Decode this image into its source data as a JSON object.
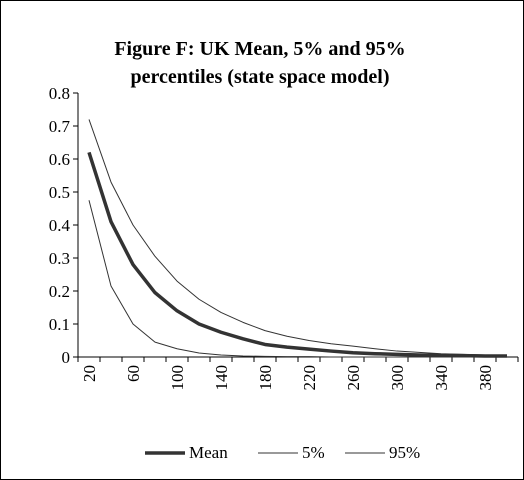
{
  "chart_data": {
    "type": "line",
    "title": [
      "Figure F: UK Mean, 5%  and 95%",
      "percentiles (state space model)"
    ],
    "categories": [
      "20",
      null,
      "60",
      null,
      "100",
      null,
      "140",
      null,
      "180",
      null,
      "220",
      null,
      "260",
      null,
      "300",
      null,
      "340",
      null,
      "380",
      null
    ],
    "series": [
      {
        "name": "Mean",
        "color": "#333333",
        "width": 3.5,
        "values": [
          0.62,
          0.41,
          0.28,
          0.195,
          0.14,
          0.1,
          0.075,
          0.055,
          0.038,
          0.03,
          0.024,
          0.018,
          0.013,
          0.01,
          0.008,
          0.006,
          0.005,
          0.004,
          0.003,
          0.003
        ]
      },
      {
        "name": "5%",
        "color": "#333333",
        "width": 1,
        "values": [
          0.475,
          0.215,
          0.1,
          0.045,
          0.025,
          0.012,
          0.006,
          0.003,
          0.002,
          0.001,
          0.001,
          0,
          0,
          0,
          0,
          0,
          0,
          0,
          0,
          0
        ]
      },
      {
        "name": "95%",
        "color": "#333333",
        "width": 1,
        "values": [
          0.72,
          0.53,
          0.4,
          0.305,
          0.23,
          0.175,
          0.135,
          0.105,
          0.08,
          0.063,
          0.05,
          0.04,
          0.033,
          0.025,
          0.018,
          0.014,
          0.01,
          0.008,
          0.006,
          0.005
        ]
      }
    ],
    "ylim": [
      0,
      0.8
    ],
    "yticks": [
      0,
      0.1,
      0.2,
      0.3,
      0.4,
      0.5,
      0.6,
      0.7,
      0.8
    ]
  }
}
